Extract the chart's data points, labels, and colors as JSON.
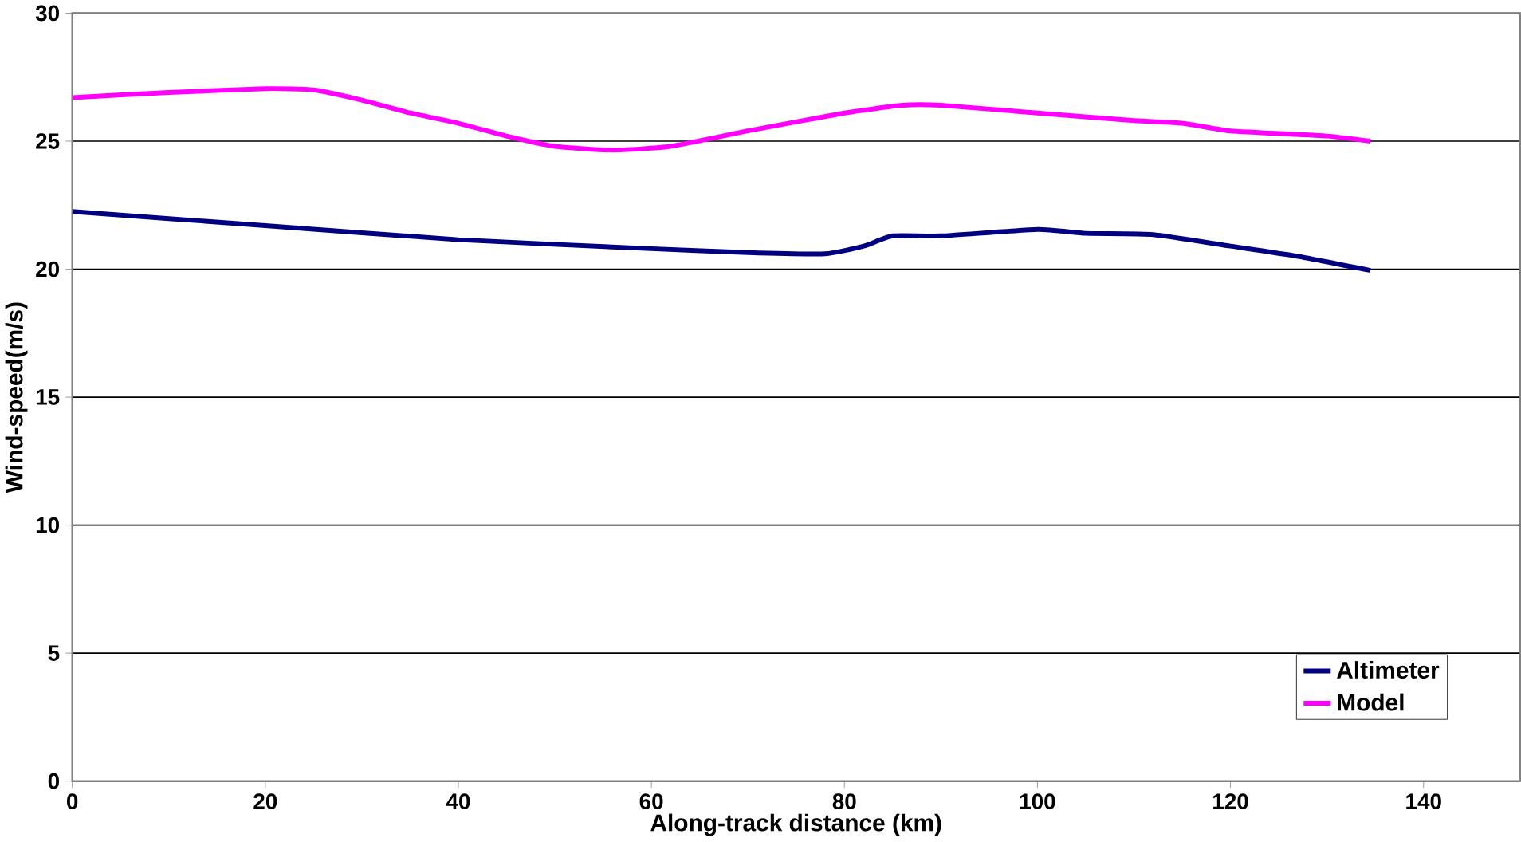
{
  "chart_data": {
    "type": "line",
    "xlabel": "Along-track distance (km)",
    "ylabel": "Wind-speed(m/s)",
    "xlim": [
      0,
      150
    ],
    "xticks": [
      0,
      20,
      40,
      60,
      80,
      100,
      120,
      140
    ],
    "ylim": [
      0,
      30
    ],
    "yticks": [
      0,
      5,
      10,
      15,
      20,
      25,
      30
    ],
    "grid": "y",
    "legend": "bottom right",
    "marker": "none",
    "line_style": "solid",
    "series": [
      {
        "name": "Altimeter",
        "color": "#000080",
        "x": [
          0,
          20,
          40,
          60,
          70,
          78,
          82,
          85,
          90,
          100,
          105,
          112,
          120,
          127,
          134.5
        ],
        "values": [
          22.25,
          21.7,
          21.15,
          20.8,
          20.65,
          20.6,
          20.9,
          21.3,
          21.3,
          21.55,
          21.4,
          21.35,
          20.9,
          20.5,
          19.95
        ]
      },
      {
        "name": "Model",
        "color": "#ff00ff",
        "x": [
          0,
          10,
          20,
          25,
          30,
          35,
          40,
          45,
          50,
          56,
          62,
          70,
          80,
          86,
          90,
          100,
          110,
          115,
          120,
          130,
          134.5
        ],
        "values": [
          26.7,
          26.9,
          27.05,
          27.0,
          26.6,
          26.1,
          25.7,
          25.2,
          24.8,
          24.65,
          24.8,
          25.4,
          26.1,
          26.4,
          26.4,
          26.1,
          25.8,
          25.7,
          25.4,
          25.2,
          25.0
        ]
      }
    ]
  }
}
